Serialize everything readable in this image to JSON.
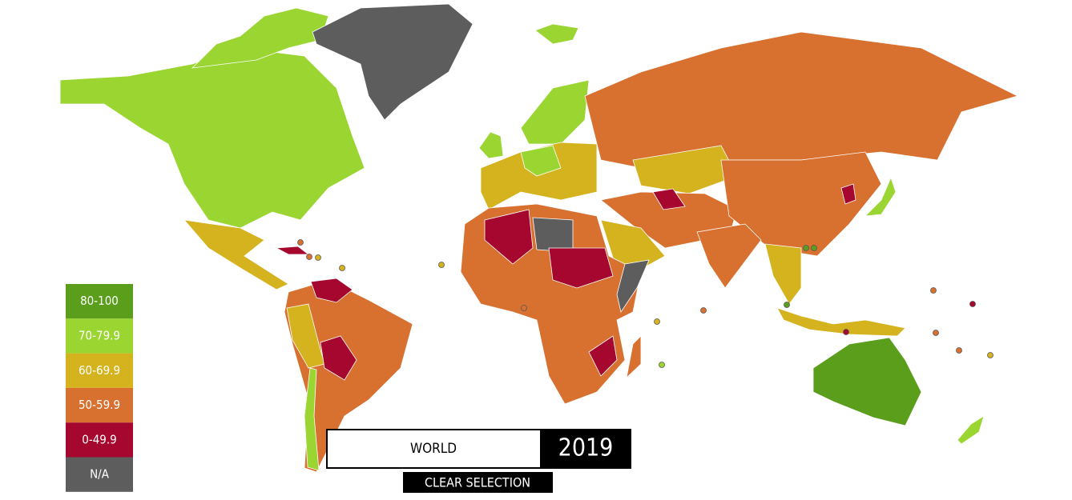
{
  "legend": [
    {
      "label": "80-100",
      "color": "#5a9e1c"
    },
    {
      "label": "70-79.9",
      "color": "#9ad531"
    },
    {
      "label": "60-69.9",
      "color": "#d4b31e"
    },
    {
      "label": "50-59.9",
      "color": "#d87030"
    },
    {
      "label": "0-49.9",
      "color": "#a6072e"
    },
    {
      "label": "N/A",
      "color": "#5d5d5d"
    }
  ],
  "selection": {
    "region": "WORLD",
    "year": "2019"
  },
  "clear_button": "CLEAR SELECTION"
}
